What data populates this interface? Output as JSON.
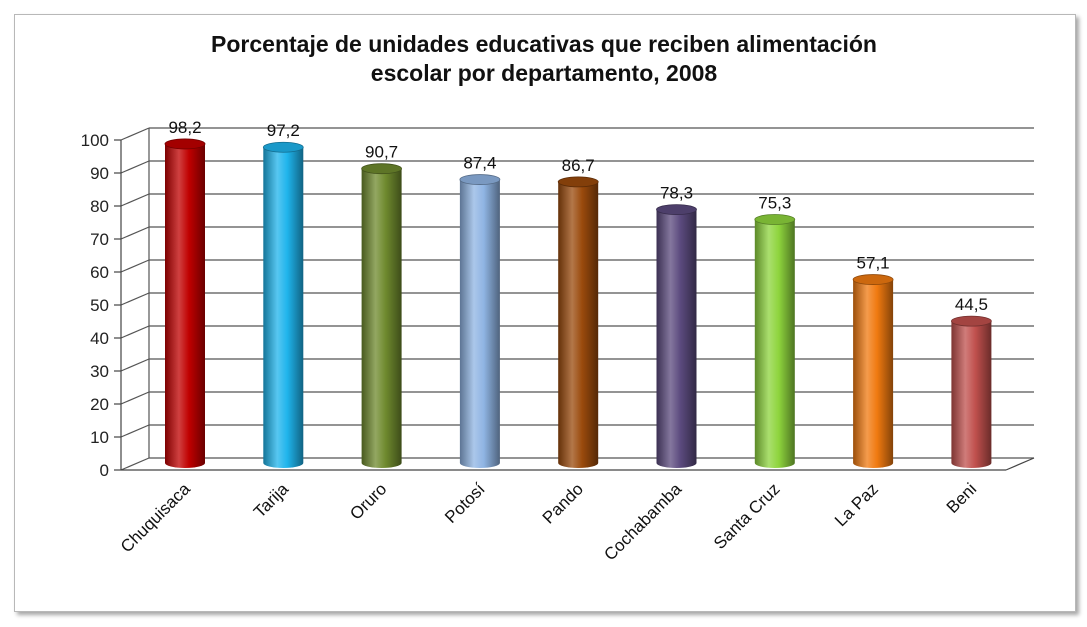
{
  "chart_data": {
    "type": "bar",
    "title": "Porcentaje de unidades educativas que reciben alimentación escolar por departamento, 2008",
    "title_lines": [
      "Porcentaje de unidades educativas que reciben alimentación",
      "escolar por departamento, 2008"
    ],
    "categories": [
      "Chuquisaca",
      "Tarija",
      "Oruro",
      "Potosí",
      "Pando",
      "Cochabamba",
      "Santa Cruz",
      "La Paz",
      "Beni"
    ],
    "values": [
      98.2,
      97.2,
      90.7,
      87.4,
      86.7,
      78.3,
      75.3,
      57.1,
      44.5
    ],
    "value_labels": [
      "98,2",
      "97,2",
      "90,7",
      "87,4",
      "86,7",
      "78,3",
      "75,3",
      "57,1",
      "44,5"
    ],
    "colors": [
      "#c00000",
      "#1fb4ec",
      "#6f8a2e",
      "#8fb4e3",
      "#9a4a0c",
      "#5b4a7e",
      "#8ed43d",
      "#f07a10",
      "#c0504d"
    ],
    "xlabel": "",
    "ylabel": "",
    "ylim": [
      0,
      100
    ],
    "yticks": [
      "0",
      "10",
      "20",
      "30",
      "40",
      "50",
      "60",
      "70",
      "80",
      "90",
      "100"
    ],
    "grid": true,
    "legend": "none"
  }
}
